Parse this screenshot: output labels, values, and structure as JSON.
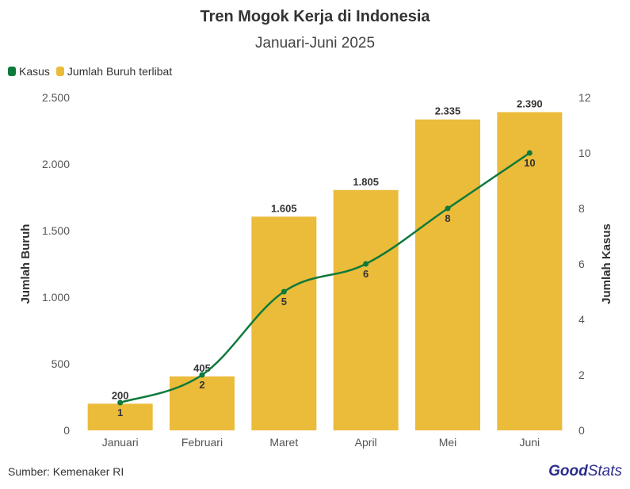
{
  "chart_data": {
    "type": "bar",
    "title": "Tren Mogok Kerja di Indonesia",
    "subtitle": "Januari-Juni 2025",
    "categories": [
      "Januari",
      "Februari",
      "Maret",
      "April",
      "Mei",
      "Juni"
    ],
    "bar_labels": [
      "200",
      "405",
      "1.605",
      "1.805",
      "2.335",
      "2.390"
    ],
    "line_labels": [
      "1",
      "2",
      "5",
      "6",
      "8",
      "10"
    ],
    "series": [
      {
        "name": "Kasus",
        "type": "line",
        "axis": "right",
        "color": "#0e7a3b",
        "values": [
          1,
          2,
          5,
          6,
          8,
          10
        ]
      },
      {
        "name": "Jumlah Buruh terlibat",
        "type": "bar",
        "axis": "left",
        "color": "#ebbb3a",
        "values": [
          200,
          405,
          1605,
          1805,
          2335,
          2390
        ]
      }
    ],
    "ylabel": "Jumlah Buruh",
    "y2label": "Jumlah Kasus",
    "ylim": [
      0,
      2500
    ],
    "y2lim": [
      0,
      12
    ],
    "yticks": [
      0,
      500,
      1000,
      1500,
      2000,
      2500
    ],
    "yticklabels": [
      "0",
      "500",
      "1.000",
      "1.500",
      "2.000",
      "2.500"
    ],
    "y2ticks": [
      0,
      2,
      4,
      6,
      8,
      10,
      12
    ],
    "y2ticklabels": [
      "0",
      "2",
      "4",
      "6",
      "8",
      "10",
      "12"
    ],
    "legend": "top-left",
    "grid": false
  },
  "source": "Sumber: Kemenaker RI",
  "logo": {
    "part1": "Good",
    "part2": "Stats"
  }
}
